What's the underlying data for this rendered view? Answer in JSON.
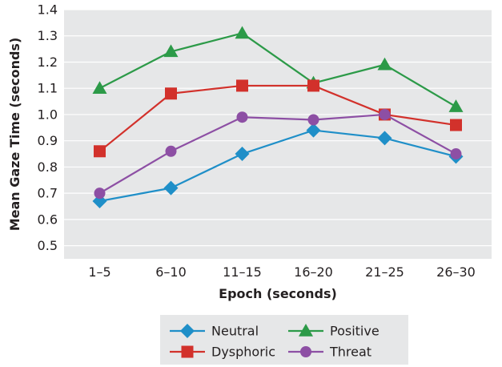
{
  "chart_data": {
    "type": "line",
    "xlabel": "Epoch (seconds)",
    "ylabel": "Mean Gaze Time (seconds)",
    "categories": [
      "1–5",
      "6–10",
      "11–15",
      "16–20",
      "21–25",
      "26–30"
    ],
    "ylim": [
      0.45,
      1.4
    ],
    "yticks": [
      "0.5",
      "0.6",
      "0.7",
      "0.8",
      "0.9",
      "1.0",
      "1.1",
      "1.2",
      "1.3",
      "1.4"
    ],
    "grid": true,
    "legend_position": "bottom",
    "series": [
      {
        "name": "Neutral",
        "color": "#1f8fc8",
        "marker": "diamond",
        "values": [
          0.67,
          0.72,
          0.85,
          0.94,
          0.91,
          0.84
        ]
      },
      {
        "name": "Positive",
        "color": "#2c9a48",
        "marker": "triangle",
        "values": [
          1.1,
          1.24,
          1.31,
          1.12,
          1.19,
          1.03
        ]
      },
      {
        "name": "Dysphoric",
        "color": "#d2312b",
        "marker": "square",
        "values": [
          0.86,
          1.08,
          1.11,
          1.11,
          1.0,
          0.96
        ]
      },
      {
        "name": "Threat",
        "color": "#8d4fa4",
        "marker": "circle",
        "values": [
          0.7,
          0.86,
          0.99,
          0.98,
          1.0,
          0.85
        ]
      }
    ]
  },
  "colors": {
    "plot_background": "#e6e7e8",
    "gridline": "#ffffff",
    "legend_background": "#e6e7e8"
  }
}
